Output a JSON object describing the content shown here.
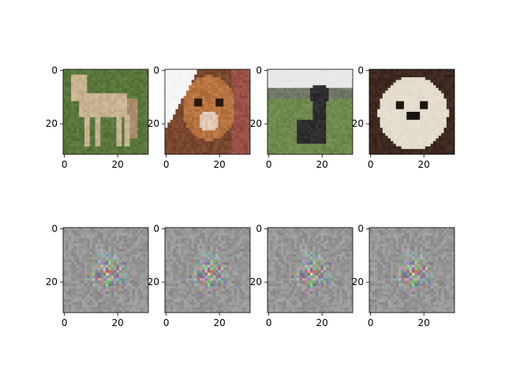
{
  "chart_data": {
    "type": "image_grid",
    "rows": 2,
    "cols": 4,
    "axis": {
      "xlim": [
        -0.5,
        31.5
      ],
      "ylim": [
        31.5,
        -0.5
      ],
      "x_ticks": [
        0,
        20
      ],
      "y_ticks": [
        0,
        20
      ],
      "x_tick_labels": [
        "0",
        "20"
      ],
      "y_tick_labels": [
        "0",
        "20"
      ]
    },
    "panels": [
      {
        "row": 0,
        "col": 0,
        "content": "horse"
      },
      {
        "row": 0,
        "col": 1,
        "content": "dog-closeup"
      },
      {
        "row": 0,
        "col": 2,
        "content": "llama"
      },
      {
        "row": 0,
        "col": 3,
        "content": "white-puppy"
      },
      {
        "row": 1,
        "col": 0,
        "content": "generated-noise"
      },
      {
        "row": 1,
        "col": 1,
        "content": "generated-noise"
      },
      {
        "row": 1,
        "col": 2,
        "content": "generated-noise"
      },
      {
        "row": 1,
        "col": 3,
        "content": "generated-noise"
      }
    ],
    "colors": {
      "axes": "#000000",
      "grass": "#5b7a3c",
      "horse": "#c8b08e",
      "dog_fur": "#b5733f",
      "llama_sky": "#e6e8ea",
      "llama_field": "#6e8a4e",
      "puppy_fur": "#e4dccd",
      "noise_base": "#9a9a94"
    }
  }
}
